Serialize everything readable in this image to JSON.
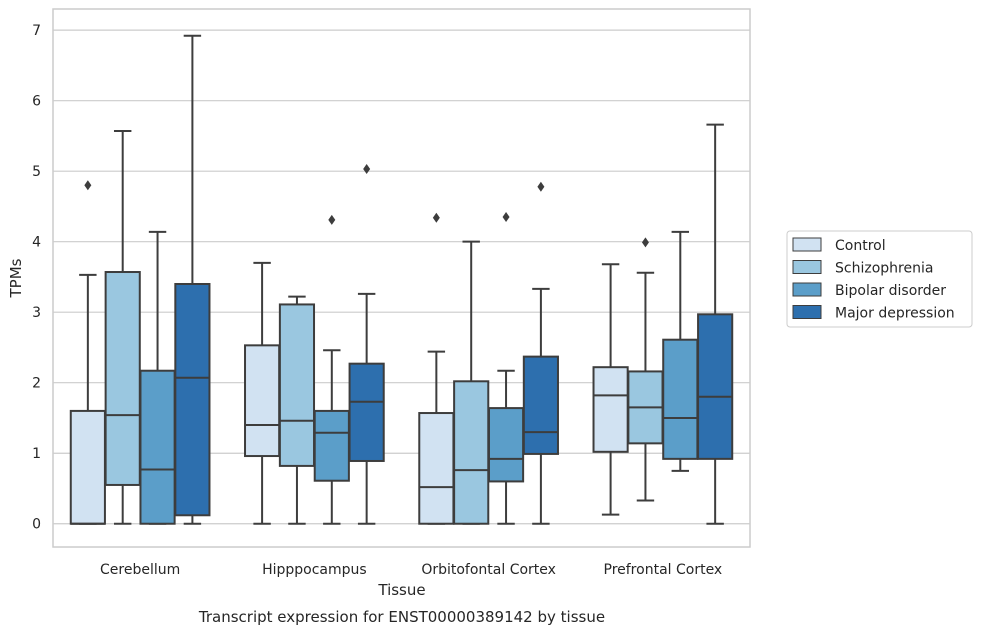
{
  "chart_data": {
    "type": "box",
    "title": "",
    "caption": "Transcript expression for ENST00000389142 by tissue",
    "xlabel": "Tissue",
    "ylabel": "TPMs",
    "ylim": [
      -0.33,
      7.3
    ],
    "yticks": [
      0,
      1,
      2,
      3,
      4,
      5,
      6,
      7
    ],
    "categories": [
      "Cerebellum",
      "Hipppocampus",
      "Orbitofontal Cortex",
      "Prefrontal Cortex"
    ],
    "grid": "horizontal",
    "legend_position": "right",
    "series": [
      {
        "name": "Control",
        "color": "#d1e2f2",
        "boxes": [
          {
            "whisker_low": 0.0,
            "q1": 0.0,
            "median": 0.0,
            "q3": 1.6,
            "whisker_high": 3.53,
            "outliers": [
              4.8
            ]
          },
          {
            "whisker_low": 0.0,
            "q1": 0.96,
            "median": 1.4,
            "q3": 2.53,
            "whisker_high": 3.7,
            "outliers": []
          },
          {
            "whisker_low": 0.0,
            "q1": 0.0,
            "median": 0.52,
            "q3": 1.57,
            "whisker_high": 2.44,
            "outliers": [
              4.34
            ]
          },
          {
            "whisker_low": 0.13,
            "q1": 1.02,
            "median": 1.82,
            "q3": 2.22,
            "whisker_high": 3.68,
            "outliers": []
          }
        ]
      },
      {
        "name": "Schizophrenia",
        "color": "#9ac7e0",
        "boxes": [
          {
            "whisker_low": 0.0,
            "q1": 0.55,
            "median": 1.54,
            "q3": 3.57,
            "whisker_high": 5.57,
            "outliers": []
          },
          {
            "whisker_low": 0.0,
            "q1": 0.82,
            "median": 1.46,
            "q3": 3.11,
            "whisker_high": 3.22,
            "outliers": []
          },
          {
            "whisker_low": 0.0,
            "q1": 0.0,
            "median": 0.76,
            "q3": 2.02,
            "whisker_high": 4.0,
            "outliers": []
          },
          {
            "whisker_low": 0.33,
            "q1": 1.14,
            "median": 1.65,
            "q3": 2.16,
            "whisker_high": 3.56,
            "outliers": [
              3.99
            ]
          }
        ]
      },
      {
        "name": "Bipolar disorder",
        "color": "#5b9ec9",
        "boxes": [
          {
            "whisker_low": 0.0,
            "q1": 0.0,
            "median": 0.77,
            "q3": 2.17,
            "whisker_high": 4.14,
            "outliers": []
          },
          {
            "whisker_low": 0.0,
            "q1": 0.61,
            "median": 1.29,
            "q3": 1.6,
            "whisker_high": 2.46,
            "outliers": [
              4.31
            ]
          },
          {
            "whisker_low": 0.0,
            "q1": 0.6,
            "median": 0.92,
            "q3": 1.64,
            "whisker_high": 2.17,
            "outliers": [
              4.35
            ]
          },
          {
            "whisker_low": 0.75,
            "q1": 0.92,
            "median": 1.5,
            "q3": 2.61,
            "whisker_high": 4.14,
            "outliers": []
          }
        ]
      },
      {
        "name": "Major depression",
        "color": "#2d6fae",
        "boxes": [
          {
            "whisker_low": 0.0,
            "q1": 0.12,
            "median": 2.07,
            "q3": 3.4,
            "whisker_high": 6.92,
            "outliers": []
          },
          {
            "whisker_low": 0.0,
            "q1": 0.89,
            "median": 1.73,
            "q3": 2.27,
            "whisker_high": 3.26,
            "outliers": [
              5.03
            ]
          },
          {
            "whisker_low": 0.0,
            "q1": 0.99,
            "median": 1.3,
            "q3": 2.37,
            "whisker_high": 3.33,
            "outliers": [
              4.78
            ]
          },
          {
            "whisker_low": 0.0,
            "q1": 0.92,
            "median": 1.8,
            "q3": 2.97,
            "whisker_high": 5.66,
            "outliers": []
          }
        ]
      }
    ]
  }
}
